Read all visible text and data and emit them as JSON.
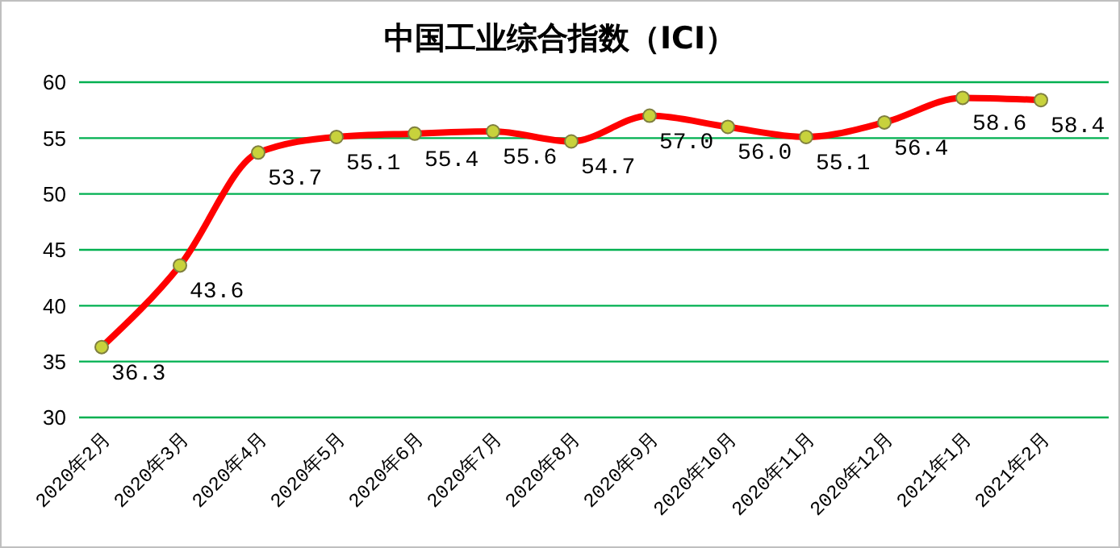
{
  "chart_data": {
    "type": "line",
    "title": "中国工业综合指数（ICI）",
    "categories": [
      "2020年2月",
      "2020年3月",
      "2020年4月",
      "2020年5月",
      "2020年6月",
      "2020年7月",
      "2020年8月",
      "2020年9月",
      "2020年10月",
      "2020年11月",
      "2020年12月",
      "2021年1月",
      "2021年2月"
    ],
    "series": [
      {
        "color": "#ff0000",
        "values": [
          36.3,
          43.6,
          53.7,
          55.1,
          55.4,
          55.6,
          54.7,
          57.0,
          56.0,
          55.1,
          56.4,
          58.6,
          58.4
        ],
        "value_labels": [
          "36.3",
          "43.6",
          "53.7",
          "55.1",
          "55.4",
          "55.6",
          "54.7",
          "57.0",
          "56.0",
          "55.1",
          "56.4",
          "58.6",
          "58.4"
        ]
      }
    ],
    "ylim": [
      30,
      60
    ],
    "yticks": [
      30,
      35,
      40,
      45,
      50,
      55,
      60
    ],
    "grid": "y",
    "legend": false,
    "marker": "circle"
  }
}
